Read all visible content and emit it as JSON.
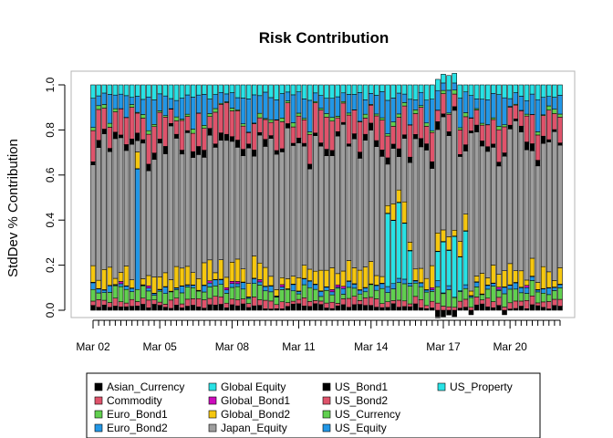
{
  "chart_data": {
    "type": "stacked-bar",
    "title": "Risk Contribution",
    "ylabel": "StdDev % Contribution",
    "xlabel": "",
    "ylim": [
      -0.04,
      1.06
    ],
    "y_ticks": [
      0.0,
      0.2,
      0.4,
      0.6,
      0.8,
      1.0
    ],
    "y_tick_labels": [
      "0.0",
      "0.2",
      "0.4",
      "0.6",
      "0.8",
      "1.0"
    ],
    "n_periods": 85,
    "x_tick_labels": [
      {
        "index": 0,
        "label": "Mar 02"
      },
      {
        "index": 12,
        "label": "Mar 05"
      },
      {
        "index": 25,
        "label": "Mar 08"
      },
      {
        "index": 37,
        "label": "Mar 11"
      },
      {
        "index": 50,
        "label": "Mar 14"
      },
      {
        "index": 63,
        "label": "Mar 17"
      },
      {
        "index": 75,
        "label": "Mar 20"
      }
    ],
    "grid": false,
    "legend_position": "bottom",
    "series_order": [
      "Asian_Currency",
      "Commodity",
      "Euro_Bond1",
      "Euro_Bond2",
      "Global Equity",
      "Global_Bond1",
      "Global_Bond2",
      "Japan_Equity",
      "US_Bond1",
      "US_Bond2",
      "US_Currency",
      "US_Equity",
      "US_Property"
    ],
    "series": [
      {
        "name": "Asian_Currency",
        "color": "#000000"
      },
      {
        "name": "Commodity",
        "color": "#DF536B"
      },
      {
        "name": "Euro_Bond1",
        "color": "#61D04F"
      },
      {
        "name": "Euro_Bond2",
        "color": "#2297E6"
      },
      {
        "name": "Global Equity",
        "color": "#28E2E5"
      },
      {
        "name": "Global_Bond1",
        "color": "#CD0BBC"
      },
      {
        "name": "Global_Bond2",
        "color": "#F5C710"
      },
      {
        "name": "Japan_Equity",
        "color": "#9E9E9E"
      },
      {
        "name": "US_Bond1",
        "color": "#000000"
      },
      {
        "name": "US_Bond2",
        "color": "#DF536B"
      },
      {
        "name": "US_Currency",
        "color": "#61D04F"
      },
      {
        "name": "US_Equity",
        "color": "#2297E6"
      },
      {
        "name": "US_Property",
        "color": "#28E2E5"
      }
    ]
  }
}
